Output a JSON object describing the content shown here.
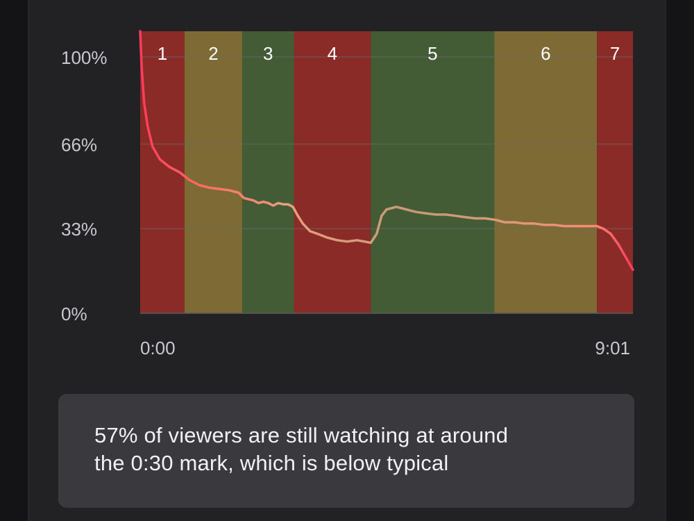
{
  "chart_data": {
    "type": "line",
    "x_labels": [
      "0:00",
      "9:01"
    ],
    "x_range": [
      "0:00",
      "9:01"
    ],
    "y_ticks": [
      "100%",
      "66%",
      "33%",
      "0%"
    ],
    "ylim": [
      0,
      110
    ],
    "grid": true,
    "colors": {
      "red_band": "#8a2b28",
      "yellow_band": "#7d6a34",
      "green_band": "#435c36",
      "line_start": "#ff3b5c",
      "line_mid": "#c49a78",
      "gridline": "#6b6a6e"
    },
    "segments": [
      {
        "label": "1",
        "start": 0.0,
        "end": 0.09,
        "color": "red"
      },
      {
        "label": "2",
        "start": 0.09,
        "end": 0.207,
        "color": "yellow"
      },
      {
        "label": "3",
        "start": 0.207,
        "end": 0.312,
        "color": "green"
      },
      {
        "label": "4",
        "start": 0.312,
        "end": 0.468,
        "color": "red"
      },
      {
        "label": "5",
        "start": 0.468,
        "end": 0.719,
        "color": "green"
      },
      {
        "label": "6",
        "start": 0.719,
        "end": 0.927,
        "color": "yellow"
      },
      {
        "label": "7",
        "start": 0.927,
        "end": 1.0,
        "color": "red"
      }
    ],
    "series": [
      {
        "points": [
          [
            0.0,
            110
          ],
          [
            0.003,
            96
          ],
          [
            0.008,
            82
          ],
          [
            0.015,
            73
          ],
          [
            0.025,
            65
          ],
          [
            0.04,
            60
          ],
          [
            0.06,
            57
          ],
          [
            0.08,
            55
          ],
          [
            0.1,
            52
          ],
          [
            0.12,
            50
          ],
          [
            0.14,
            49
          ],
          [
            0.16,
            48.5
          ],
          [
            0.18,
            48
          ],
          [
            0.2,
            47
          ],
          [
            0.21,
            45
          ],
          [
            0.22,
            44.5
          ],
          [
            0.23,
            44
          ],
          [
            0.24,
            43
          ],
          [
            0.25,
            43.5
          ],
          [
            0.26,
            43
          ],
          [
            0.27,
            42
          ],
          [
            0.28,
            43
          ],
          [
            0.29,
            42.5
          ],
          [
            0.3,
            42.5
          ],
          [
            0.31,
            41.5
          ],
          [
            0.32,
            38
          ],
          [
            0.33,
            35
          ],
          [
            0.345,
            32
          ],
          [
            0.36,
            31
          ],
          [
            0.38,
            29.5
          ],
          [
            0.4,
            28.5
          ],
          [
            0.42,
            28
          ],
          [
            0.44,
            28.5
          ],
          [
            0.455,
            28
          ],
          [
            0.468,
            27.5
          ],
          [
            0.48,
            31
          ],
          [
            0.49,
            38
          ],
          [
            0.5,
            40.5
          ],
          [
            0.52,
            41.5
          ],
          [
            0.54,
            40.5
          ],
          [
            0.56,
            39.5
          ],
          [
            0.58,
            39
          ],
          [
            0.6,
            38.5
          ],
          [
            0.62,
            38.5
          ],
          [
            0.64,
            38
          ],
          [
            0.66,
            37.5
          ],
          [
            0.68,
            37
          ],
          [
            0.7,
            37
          ],
          [
            0.72,
            36.5
          ],
          [
            0.74,
            35.5
          ],
          [
            0.76,
            35.5
          ],
          [
            0.78,
            35
          ],
          [
            0.8,
            35
          ],
          [
            0.82,
            34.5
          ],
          [
            0.84,
            34.5
          ],
          [
            0.86,
            34
          ],
          [
            0.88,
            34
          ],
          [
            0.9,
            34
          ],
          [
            0.927,
            34
          ],
          [
            0.94,
            33
          ],
          [
            0.955,
            31
          ],
          [
            0.97,
            27
          ],
          [
            0.985,
            22
          ],
          [
            1.0,
            17
          ]
        ]
      }
    ]
  },
  "insight": {
    "line1": "57% of viewers are still watching at around",
    "line2": "the 0:30 mark, which is below typical"
  }
}
